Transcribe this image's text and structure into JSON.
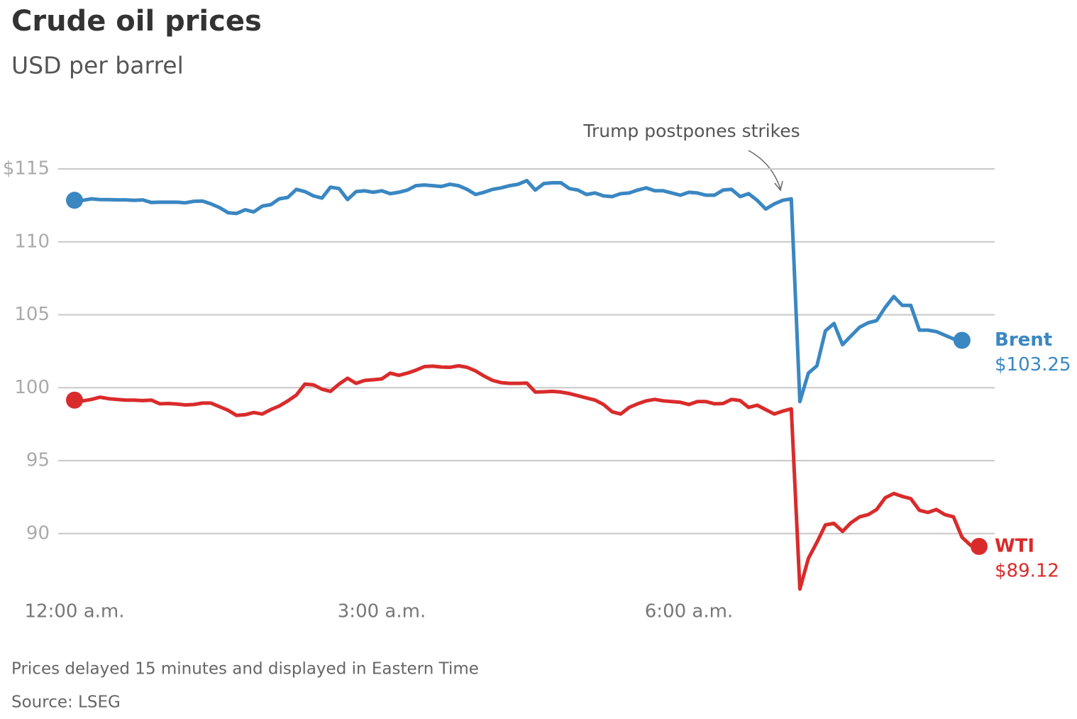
{
  "chart_data": {
    "type": "line",
    "title": "Crude oil prices",
    "subtitle": "USD per barrel",
    "annotation": "Trump postpones strikes",
    "notes": [
      "Prices delayed 15 minutes and displayed in Eastern Time",
      "Source: LSEG"
    ],
    "x": [
      0,
      5,
      10,
      15,
      20,
      25,
      30,
      35,
      40,
      45,
      50,
      55,
      60,
      65,
      70,
      75,
      80,
      85,
      90,
      95,
      100,
      105,
      110,
      115,
      120,
      125,
      130,
      135,
      140,
      145,
      150,
      155,
      160,
      165,
      170,
      175,
      180,
      185,
      190,
      195,
      200,
      205,
      210,
      215,
      220,
      225,
      230,
      235,
      240,
      245,
      250,
      255,
      260,
      265,
      270,
      275,
      280,
      285,
      290,
      295,
      300,
      305,
      310,
      315,
      320,
      325,
      330,
      335,
      340,
      345,
      350,
      355,
      360,
      365,
      370,
      375,
      380,
      385,
      390,
      395,
      400,
      405,
      410,
      415,
      420,
      425,
      430,
      435,
      440,
      445,
      450,
      455,
      460,
      465,
      470,
      475,
      480,
      485,
      490,
      495,
      500,
      505,
      510,
      515,
      520,
      525,
      530
    ],
    "xlim": [
      0,
      540
    ],
    "xticks": [
      {
        "value": 0,
        "label": "12:00 a.m."
      },
      {
        "value": 180,
        "label": "3:00 a.m."
      },
      {
        "value": 360,
        "label": "6:00 a.m."
      }
    ],
    "ylim": [
      86,
      115
    ],
    "yticks": [
      90,
      95,
      100,
      105,
      110,
      {
        "value": 115,
        "label": "$115"
      }
    ],
    "grid": true,
    "series": [
      {
        "name": "Brent",
        "color": "#3a87c2",
        "end_value_label": "$103.25",
        "values": [
          112.85,
          112.85,
          112.95,
          112.9,
          112.9,
          112.88,
          112.88,
          112.85,
          112.88,
          112.7,
          112.72,
          112.72,
          112.72,
          112.68,
          112.78,
          112.8,
          112.6,
          112.35,
          112.0,
          111.95,
          112.2,
          112.05,
          112.45,
          112.55,
          112.95,
          113.05,
          113.6,
          113.45,
          113.15,
          113.0,
          113.75,
          113.65,
          112.9,
          113.45,
          113.5,
          113.4,
          113.5,
          113.3,
          113.4,
          113.55,
          113.85,
          113.9,
          113.85,
          113.8,
          113.95,
          113.85,
          113.6,
          113.25,
          113.4,
          113.6,
          113.7,
          113.85,
          113.95,
          114.2,
          113.55,
          114.0,
          114.05,
          114.05,
          113.65,
          113.55,
          113.25,
          113.35,
          113.15,
          113.1,
          113.3,
          113.35,
          113.55,
          113.7,
          113.5,
          113.5,
          113.35,
          113.2,
          113.4,
          113.35,
          113.2,
          113.2,
          113.55,
          113.6,
          113.1,
          113.3,
          112.85,
          112.25,
          112.6,
          112.85,
          112.95,
          99.05,
          101.0,
          101.5,
          103.9,
          104.4,
          102.95,
          103.55,
          104.15,
          104.45,
          104.6,
          105.5,
          106.25,
          105.65,
          105.65,
          103.95,
          103.95,
          103.85,
          103.6,
          103.35,
          103.25,
          null,
          null
        ]
      },
      {
        "name": "WTI",
        "color": "#d92b2b",
        "end_value_label": "$89.12",
        "values": [
          99.15,
          99.1,
          99.2,
          99.35,
          99.25,
          99.2,
          99.15,
          99.15,
          99.12,
          99.15,
          98.9,
          98.92,
          98.88,
          98.82,
          98.85,
          98.95,
          98.95,
          98.7,
          98.45,
          98.1,
          98.15,
          98.3,
          98.2,
          98.5,
          98.75,
          99.1,
          99.5,
          100.25,
          100.2,
          99.9,
          99.75,
          100.25,
          100.65,
          100.3,
          100.5,
          100.55,
          100.6,
          101.0,
          100.85,
          101.0,
          101.2,
          101.45,
          101.48,
          101.42,
          101.4,
          101.5,
          101.4,
          101.15,
          100.8,
          100.5,
          100.35,
          100.3,
          100.3,
          100.32,
          99.7,
          99.72,
          99.75,
          99.7,
          99.6,
          99.45,
          99.3,
          99.15,
          98.85,
          98.35,
          98.2,
          98.65,
          98.9,
          99.1,
          99.2,
          99.1,
          99.05,
          99.0,
          98.85,
          99.05,
          99.05,
          98.9,
          98.92,
          99.2,
          99.12,
          98.65,
          98.8,
          98.5,
          98.2,
          98.4,
          98.55,
          86.2,
          88.3,
          89.4,
          90.6,
          90.7,
          90.15,
          90.75,
          91.15,
          91.3,
          91.65,
          92.45,
          92.75,
          92.55,
          92.4,
          91.6,
          91.45,
          91.65,
          91.3,
          91.15,
          89.75,
          89.2,
          89.12
        ]
      }
    ]
  }
}
